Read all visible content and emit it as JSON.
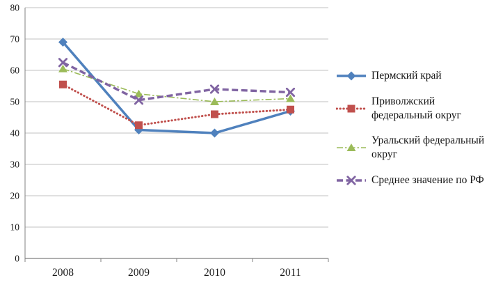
{
  "chart_data": {
    "type": "line",
    "title": "",
    "xlabel": "",
    "ylabel": "",
    "categories": [
      "2008",
      "2009",
      "2010",
      "2011"
    ],
    "series": [
      {
        "name": "Пермский край",
        "values": [
          69,
          41,
          40,
          47
        ],
        "color": "#4F81BD",
        "line_style": "solid",
        "line_width": 3.5,
        "marker": "diamond"
      },
      {
        "name": "Приволжский федеральный округ",
        "values": [
          55.5,
          42.5,
          46,
          47.5
        ],
        "color": "#C0504D",
        "line_style": "dotted",
        "line_width": 3,
        "marker": "square"
      },
      {
        "name": "Уральский федеральный округ",
        "values": [
          60.5,
          52.5,
          50,
          51
        ],
        "color": "#9BBB59",
        "line_style": "dashdot",
        "line_width": 1.6,
        "marker": "triangle"
      },
      {
        "name": "Среднее значение по РФ",
        "values": [
          62.5,
          50.5,
          54,
          53
        ],
        "color": "#8064A2",
        "line_style": "dashed",
        "line_width": 3.4,
        "marker": "x"
      }
    ],
    "ylim": [
      0,
      80
    ],
    "ytick_step": 10,
    "grid": true,
    "legend_position": "right",
    "gridline_color": "#C0C0C0",
    "axis_color": "#808080",
    "text_color": "#1a1a1a"
  }
}
